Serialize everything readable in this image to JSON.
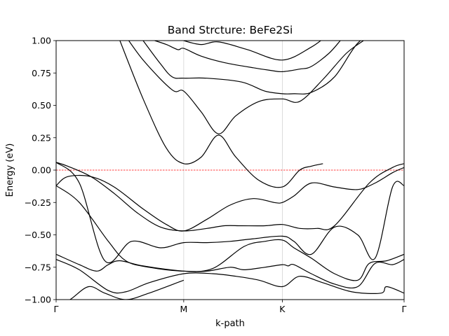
{
  "chart_data": {
    "type": "line",
    "title": "Band Strcture: BeFe2Si",
    "xlabel": "k-path",
    "ylabel": "Energy (eV)",
    "ylim": [
      -1.0,
      1.0
    ],
    "xlim": [
      0,
      3
    ],
    "y_ticks": [
      -1.0,
      -0.75,
      -0.5,
      -0.25,
      0.0,
      0.25,
      0.5,
      0.75,
      1.0
    ],
    "y_tick_labels": [
      "−1.00",
      "−0.75",
      "−0.50",
      "−0.25",
      "0.00",
      "0.25",
      "0.50",
      "0.75",
      "1.00"
    ],
    "k_points": [
      {
        "label": "Γ",
        "x": 0
      },
      {
        "label": "M",
        "x": 1.1
      },
      {
        "label": "K",
        "x": 1.95
      },
      {
        "label": "Γ",
        "x": 3
      }
    ],
    "fermi_level": 0.0,
    "vertical_gridlines_at_k_points": true,
    "colors": {
      "bands": "#000000",
      "fermi": "#ff0000",
      "grid": "#d3d3d3"
    },
    "series": [
      {
        "x": [
          0,
          0.12,
          0.28,
          0.42,
          0.6,
          0.8,
          1.1
        ],
        "values": [
          -1.05,
          -1.0,
          -0.9,
          -0.95,
          -1.0,
          -0.95,
          -0.85
        ]
      },
      {
        "x": [
          0,
          0.2,
          0.45,
          0.6,
          0.8,
          1.1,
          1.35,
          1.55,
          1.75,
          1.95,
          2.1,
          2.3,
          2.55,
          2.8,
          2.85,
          3
        ],
        "values": [
          -0.69,
          -0.77,
          -0.93,
          -0.94,
          -0.87,
          -0.8,
          -0.8,
          -0.82,
          -0.85,
          -0.9,
          -0.82,
          -0.87,
          -0.94,
          -0.95,
          -0.9,
          -0.95
        ]
      },
      {
        "x": [
          0,
          0.2,
          0.35,
          0.45,
          0.55,
          0.75,
          1.1,
          1.3,
          1.5,
          1.62,
          1.8,
          1.95,
          2.0,
          2.05,
          2.2,
          2.4,
          2.6,
          2.75,
          2.9,
          3
        ],
        "values": [
          -0.65,
          -0.73,
          -0.78,
          -0.73,
          -0.7,
          -0.74,
          -0.78,
          -0.78,
          -0.75,
          -0.77,
          -0.75,
          -0.73,
          -0.74,
          -0.73,
          -0.8,
          -0.88,
          -0.9,
          -0.72,
          -0.73,
          -0.69
        ]
      },
      {
        "x": [
          0,
          0.2,
          0.45,
          0.6,
          0.8,
          1.1,
          1.35,
          1.62,
          1.8,
          1.95,
          2.05,
          2.2,
          2.4,
          2.6,
          2.7,
          2.85,
          3
        ],
        "values": [
          -0.12,
          -0.25,
          -0.55,
          -0.7,
          -0.75,
          -0.78,
          -0.76,
          -0.59,
          -0.55,
          -0.54,
          -0.6,
          -0.68,
          -0.8,
          -0.85,
          -0.72,
          -0.7,
          -0.65
        ]
      },
      {
        "x": [
          0,
          0.2,
          0.42,
          0.65,
          0.9,
          1.1,
          1.3,
          1.5,
          1.7,
          1.95,
          2.05,
          2.2,
          2.4,
          2.6,
          2.75,
          2.9,
          3
        ],
        "values": [
          0.06,
          -0.1,
          -0.7,
          -0.55,
          -0.6,
          -0.56,
          -0.56,
          -0.55,
          -0.53,
          -0.51,
          -0.55,
          -0.65,
          -0.44,
          -0.5,
          -0.68,
          -0.13,
          -0.12
        ]
      },
      {
        "x": [
          0,
          0.1,
          0.3,
          0.5,
          0.75,
          0.95,
          1.1,
          1.3,
          1.5,
          1.7,
          1.88,
          1.95,
          2.05,
          2.2,
          2.4,
          2.6,
          2.75,
          2.9,
          3
        ],
        "values": [
          -0.12,
          -0.05,
          -0.05,
          -0.13,
          -0.3,
          -0.42,
          -0.47,
          -0.38,
          -0.27,
          -0.22,
          -0.25,
          -0.25,
          -0.2,
          -0.1,
          -0.13,
          -0.15,
          -0.1,
          -0.02,
          0.02
        ]
      },
      {
        "x": [
          0,
          0.1,
          0.3,
          0.5,
          0.7,
          0.9,
          1.1,
          1.3,
          1.45,
          1.6,
          1.8,
          1.95,
          2.1,
          2.25,
          2.4,
          2.7,
          2.9,
          3
        ],
        "values": [
          0.06,
          0.03,
          -0.05,
          -0.18,
          -0.33,
          -0.44,
          -0.47,
          -0.45,
          -0.43,
          -0.43,
          -0.43,
          -0.42,
          -0.45,
          -0.45,
          -0.43,
          -0.1,
          0.02,
          0.05
        ]
      },
      {
        "x": [
          0.55,
          0.75,
          0.95,
          1.1,
          1.25,
          1.4,
          1.55,
          1.75,
          1.95,
          2.1,
          2.2,
          2.3
        ],
        "values": [
          1.0,
          0.55,
          0.17,
          0.05,
          0.1,
          0.27,
          0.1,
          -0.08,
          -0.13,
          0.0,
          0.03,
          0.05
        ]
      },
      {
        "x": [
          0.55,
          0.75,
          1.0,
          1.1,
          1.25,
          1.4,
          1.55,
          1.75,
          1.95,
          2.1,
          2.3,
          2.5,
          2.65
        ],
        "values": [
          1.1,
          0.85,
          0.62,
          0.61,
          0.45,
          0.28,
          0.42,
          0.53,
          0.55,
          0.53,
          0.7,
          0.9,
          1.0
        ]
      },
      {
        "x": [
          0.75,
          0.9,
          1.0,
          1.1,
          1.3,
          1.6,
          1.8,
          1.95,
          2.05,
          2.2,
          2.4,
          2.6,
          2.8
        ],
        "values": [
          1.0,
          0.82,
          0.72,
          0.71,
          0.71,
          0.68,
          0.61,
          0.59,
          0.59,
          0.6,
          0.72,
          0.98,
          1.1
        ]
      },
      {
        "x": [
          0.85,
          0.95,
          1.05,
          1.1,
          1.25,
          1.45,
          1.7,
          1.85,
          1.95,
          2.1,
          2.2,
          2.35,
          2.45
        ],
        "values": [
          1.0,
          0.97,
          0.93,
          0.94,
          0.88,
          0.83,
          0.79,
          0.77,
          0.76,
          0.78,
          0.8,
          0.9,
          1.0
        ]
      },
      {
        "x": [
          0.95,
          1.1,
          1.25,
          1.4,
          1.65,
          1.95,
          2.2,
          2.35
        ],
        "values": [
          1.05,
          1.0,
          0.97,
          0.99,
          0.93,
          0.85,
          0.95,
          1.05
        ]
      }
    ]
  }
}
